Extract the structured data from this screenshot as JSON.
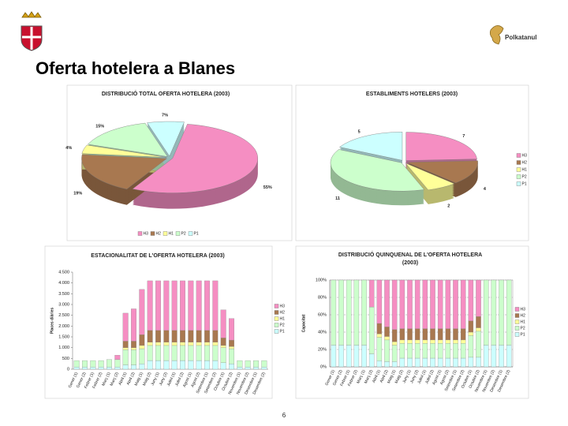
{
  "header": {
    "title": "Oferta hotelera a Blanes",
    "logo_text": "Polkatanul",
    "page_number": "6"
  },
  "chart_data": [
    {
      "type": "pie",
      "title": "DISTRIBUCIÓ TOTAL OFERTA HOTELERA (2003)",
      "labels": [
        "H3",
        "H2",
        "H1",
        "P2",
        "P1"
      ],
      "values": [
        55,
        19,
        4,
        15,
        7
      ],
      "value_labels": [
        "55%",
        "19%",
        "4%",
        "15%",
        "7%"
      ],
      "colors": [
        "#f58ec2",
        "#a87850",
        "#ffff99",
        "#ccffcc",
        "#ccffff"
      ],
      "legend": "bottom"
    },
    {
      "type": "pie",
      "title": "ESTABLIMENTS HOTELERS (2003)",
      "labels": [
        "H3",
        "H2",
        "H1",
        "P2",
        "P1"
      ],
      "values": [
        7,
        4,
        2,
        11,
        5
      ],
      "colors": [
        "#f58ec2",
        "#a87850",
        "#ffff99",
        "#ccffcc",
        "#ccffff"
      ],
      "legend": "right"
    },
    {
      "type": "bar",
      "stacked": true,
      "title": "ESTACIONALITAT DE L'OFERTA HOTELERA (2003)",
      "ylabel": "Places diàries",
      "categories": [
        "Gener (1)",
        "Gener (2)",
        "Febrer (1)",
        "Febrer (2)",
        "Març (1)",
        "Març (2)",
        "Abril (1)",
        "Abril (2)",
        "Maig (1)",
        "Maig (2)",
        "Juny (1)",
        "Juny (2)",
        "Juliol (1)",
        "Juliol (2)",
        "Agost (1)",
        "Agost (2)",
        "Setembre (1)",
        "Setembre (2)",
        "Octubre (1)",
        "Octubre (2)",
        "Novembre (1)",
        "Novembre (2)",
        "Desembre (1)",
        "Desembre (2)"
      ],
      "series": [
        {
          "name": "H3",
          "color": "#f58ec2",
          "values": [
            0,
            0,
            0,
            0,
            0,
            200,
            1300,
            1500,
            2100,
            2300,
            2300,
            2300,
            2300,
            2300,
            2300,
            2300,
            2300,
            2300,
            1300,
            1000,
            0,
            0,
            0,
            0
          ]
        },
        {
          "name": "H2",
          "color": "#a87850",
          "values": [
            0,
            0,
            0,
            0,
            0,
            0,
            300,
            300,
            500,
            550,
            550,
            550,
            550,
            550,
            550,
            550,
            550,
            550,
            350,
            300,
            0,
            0,
            0,
            0
          ]
        },
        {
          "name": "H1",
          "color": "#ffff99",
          "values": [
            0,
            0,
            0,
            0,
            0,
            0,
            100,
            100,
            150,
            150,
            150,
            150,
            150,
            150,
            150,
            150,
            150,
            150,
            100,
            100,
            0,
            0,
            0,
            0
          ]
        },
        {
          "name": "P2",
          "color": "#ccffcc",
          "values": [
            300,
            300,
            300,
            300,
            350,
            350,
            700,
            700,
            700,
            700,
            700,
            700,
            700,
            700,
            700,
            700,
            700,
            700,
            700,
            700,
            300,
            300,
            300,
            300
          ]
        },
        {
          "name": "P1",
          "color": "#ccffff",
          "values": [
            100,
            100,
            100,
            100,
            100,
            100,
            200,
            200,
            250,
            400,
            400,
            400,
            400,
            400,
            400,
            400,
            400,
            400,
            300,
            250,
            100,
            100,
            100,
            100
          ]
        }
      ],
      "ylim": [
        0,
        4500
      ],
      "yticks": [
        0,
        500,
        {
          "value": 1000,
          "label": "1.000"
        },
        {
          "value": 1500,
          "label": "1.500"
        },
        {
          "value": 2000,
          "label": "2.000"
        },
        {
          "value": 2500,
          "label": "2.500"
        },
        {
          "value": 3000,
          "label": "3.000"
        },
        {
          "value": 3500,
          "label": "3.500"
        },
        {
          "value": 4000,
          "label": "4.000"
        },
        {
          "value": 4500,
          "label": "4.500"
        }
      ],
      "grid": false,
      "legend": "right"
    },
    {
      "type": "bar",
      "stacked": true,
      "title": "DISTRIBUCIÓ QUINQUENAL DE L'OFERTA HOTELERA",
      "subtitle": "(2003)",
      "ylabel": "Capacitat",
      "categories": [
        "Gener (1)",
        "Gener (2)",
        "Febrer (1)",
        "Febrer (2)",
        "Març (1)",
        "Març (2)",
        "Abril (1)",
        "Abril (2)",
        "Maig (1)",
        "Maig (2)",
        "Juny (1)",
        "Juny (2)",
        "Juliol (1)",
        "Juliol (2)",
        "Agost (1)",
        "Agost (2)",
        "Setembre (1)",
        "Setembre (2)",
        "Octubre (1)",
        "Octubre (2)",
        "Novembre (1)",
        "Novembre (2)",
        "Desembre (1)",
        "Desembre (2)"
      ],
      "series": [
        {
          "name": "H3",
          "color": "#f58ec2",
          "values": [
            0,
            0,
            0,
            0,
            0,
            31,
            50,
            54,
            57,
            56,
            56,
            56,
            56,
            56,
            56,
            56,
            56,
            56,
            47,
            42,
            0,
            0,
            0,
            0
          ]
        },
        {
          "name": "H2",
          "color": "#a87850",
          "values": [
            0,
            0,
            0,
            0,
            0,
            0,
            12,
            11,
            14,
            13,
            13,
            13,
            13,
            13,
            13,
            13,
            13,
            13,
            13,
            13,
            0,
            0,
            0,
            0
          ]
        },
        {
          "name": "H1",
          "color": "#ffff99",
          "values": [
            0,
            0,
            0,
            0,
            0,
            0,
            4,
            4,
            4,
            4,
            4,
            4,
            4,
            4,
            4,
            4,
            4,
            4,
            4,
            4,
            0,
            0,
            0,
            0
          ]
        },
        {
          "name": "P2",
          "color": "#ccffcc",
          "values": [
            75,
            75,
            75,
            75,
            75,
            54,
            27,
            25,
            19,
            17,
            17,
            17,
            17,
            17,
            17,
            17,
            17,
            17,
            25,
            30,
            75,
            75,
            75,
            75
          ]
        },
        {
          "name": "P1",
          "color": "#ccffff",
          "values": [
            25,
            25,
            25,
            25,
            25,
            15,
            7,
            6,
            6,
            10,
            10,
            10,
            10,
            10,
            10,
            10,
            10,
            10,
            11,
            11,
            25,
            25,
            25,
            25
          ]
        }
      ],
      "ylim": [
        0,
        100
      ],
      "yticks": [
        {
          "value": 0,
          "label": "0%"
        },
        {
          "value": 20,
          "label": "20%"
        },
        {
          "value": 40,
          "label": "40%"
        },
        {
          "value": 60,
          "label": "60%"
        },
        {
          "value": 80,
          "label": "80%"
        },
        {
          "value": 100,
          "label": "100%"
        }
      ],
      "grid": true,
      "legend": "right"
    }
  ]
}
